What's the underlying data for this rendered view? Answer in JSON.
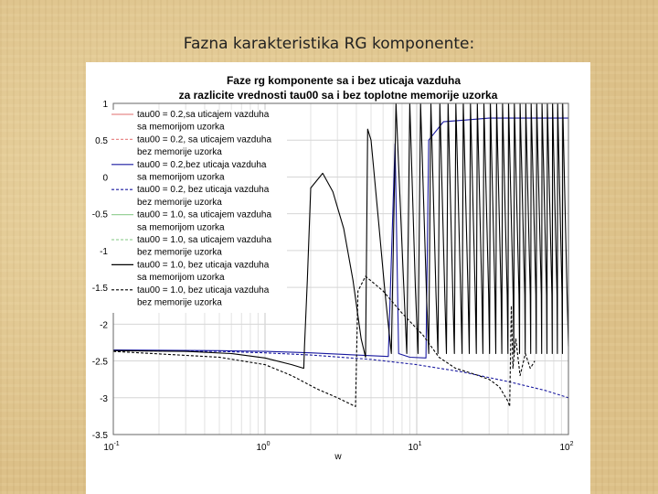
{
  "slide": {
    "title": "Fazna karakteristika RG komponente:"
  },
  "chart_data": {
    "type": "line",
    "title": "Faze rg komponente sa i bez uticaja vazduha",
    "subtitle": "za razlicite vrednosti tau00 sa i bez toplotne memorije uzorka",
    "xlabel": "w",
    "ylabel": "",
    "xscale": "log",
    "xlim": [
      0.1,
      100
    ],
    "ylim": [
      -3.5,
      1
    ],
    "grid": true,
    "legend_position": "top-left",
    "x_ticks": [
      {
        "value": 0.1,
        "base": "10",
        "exp": "-1"
      },
      {
        "value": 1,
        "base": "10",
        "exp": "0"
      },
      {
        "value": 10,
        "base": "10",
        "exp": "1"
      },
      {
        "value": 100,
        "base": "10",
        "exp": "2"
      }
    ],
    "y_ticks": [
      {
        "value": 1,
        "label": "1"
      },
      {
        "value": 0.5,
        "label": "0.5"
      },
      {
        "value": 0,
        "label": "0"
      },
      {
        "value": -0.5,
        "label": "-0.5"
      },
      {
        "value": -1,
        "label": "-1"
      },
      {
        "value": -1.5,
        "label": "-1.5"
      },
      {
        "value": -2,
        "label": "-2"
      },
      {
        "value": -2.5,
        "label": "-2.5"
      },
      {
        "value": -3,
        "label": "-3"
      },
      {
        "value": -3.5,
        "label": "-3.5"
      }
    ],
    "legend": [
      {
        "lines": [
          "tau00 = 0.2,sa uticajem vazduha",
          " sa memorijom uzorka"
        ],
        "color": "#e88a8a",
        "dash": "solid"
      },
      {
        "lines": [
          "tau00 = 0.2, sa uticajem vazduha",
          "bez memorije uzorka"
        ],
        "color": "#e88a8a",
        "dash": "dashed"
      },
      {
        "lines": [
          "tau00 = 0.2,bez uticaja vazduha",
          " sa memorijom uzorka"
        ],
        "color": "#1a1aa0",
        "dash": "solid"
      },
      {
        "lines": [
          "tau00 = 0.2, bez uticaja vazduha",
          "bez memorije uzorka"
        ],
        "color": "#1a1aa0",
        "dash": "dashed"
      },
      {
        "lines": [
          "tau00 = 1.0, sa uticajem vazduha",
          "sa memorijom uzorka"
        ],
        "color": "#9ad29a",
        "dash": "solid"
      },
      {
        "lines": [
          "tau00 = 1.0, sa uticajem vazduha",
          "bez memorije uzorka"
        ],
        "color": "#9ad29a",
        "dash": "dashed"
      },
      {
        "lines": [
          "tau00 = 1.0, bez uticaja vazduha",
          " sa memorijom uzorka"
        ],
        "color": "#000000",
        "dash": "solid"
      },
      {
        "lines": [
          "tau00 = 1.0, bez uticaja vazduha",
          "bez memorije uzorka"
        ],
        "color": "#000000",
        "dash": "dashed"
      }
    ],
    "series": [
      {
        "color": "#1a1aa0",
        "dash": "solid",
        "points": [
          [
            0.1,
            -2.35
          ],
          [
            0.5,
            -2.36
          ],
          [
            1,
            -2.37
          ],
          [
            2,
            -2.39
          ],
          [
            4,
            -2.42
          ],
          [
            6.5,
            -2.44
          ],
          [
            7,
            -0.3
          ],
          [
            7.2,
            0.45
          ],
          [
            7.6,
            -2.4
          ],
          [
            9,
            -2.45
          ],
          [
            11.5,
            -2.46
          ],
          [
            12,
            0.5
          ],
          [
            15,
            0.75
          ],
          [
            30,
            0.8
          ],
          [
            100,
            0.8
          ]
        ]
      },
      {
        "color": "#1a1aa0",
        "dash": "dashed",
        "points": [
          [
            0.1,
            -2.36
          ],
          [
            0.5,
            -2.37
          ],
          [
            1,
            -2.39
          ],
          [
            2,
            -2.42
          ],
          [
            5,
            -2.48
          ],
          [
            10,
            -2.55
          ],
          [
            20,
            -2.65
          ],
          [
            40,
            -2.78
          ],
          [
            70,
            -2.9
          ],
          [
            100,
            -3.0
          ]
        ]
      },
      {
        "color": "#000000",
        "dash": "solid",
        "points": [
          [
            0.1,
            -2.36
          ],
          [
            0.3,
            -2.37
          ],
          [
            0.6,
            -2.4
          ],
          [
            1.0,
            -2.46
          ],
          [
            1.5,
            -2.55
          ],
          [
            1.8,
            -2.6
          ],
          [
            1.82,
            -2.3
          ],
          [
            1.9,
            -1.4
          ],
          [
            2.0,
            -0.15
          ],
          [
            2.4,
            0.05
          ],
          [
            2.8,
            -0.2
          ],
          [
            3.3,
            -0.7
          ],
          [
            3.8,
            -1.4
          ],
          [
            4.3,
            -2.2
          ],
          [
            4.6,
            -2.45
          ],
          [
            4.75,
            0.65
          ],
          [
            5.0,
            0.5
          ],
          [
            5.6,
            -0.6
          ],
          [
            6.2,
            -1.6
          ],
          [
            6.8,
            -2.4
          ],
          [
            7.3,
            1.0
          ],
          [
            8.1,
            -1.2
          ],
          [
            8.6,
            -2.4
          ],
          [
            9.0,
            1.0
          ],
          [
            9.8,
            -1.5
          ],
          [
            10.2,
            -2.4
          ],
          [
            10.6,
            1.0
          ],
          [
            11.6,
            -1.6
          ],
          [
            12.0,
            -2.4
          ],
          [
            12.4,
            1.0
          ],
          [
            13.4,
            -1.6
          ],
          [
            13.8,
            -2.4
          ],
          [
            14.2,
            1.0
          ],
          [
            15.3,
            -1.6
          ],
          [
            15.7,
            -2.4
          ],
          [
            16.1,
            1.0
          ],
          [
            17.3,
            -1.6
          ],
          [
            17.7,
            -2.4
          ],
          [
            18.1,
            1.0
          ],
          [
            19.5,
            -1.6
          ],
          [
            19.9,
            -2.4
          ],
          [
            20.3,
            1.0
          ],
          [
            21.8,
            -1.6
          ],
          [
            22.2,
            -2.4
          ],
          [
            22.6,
            1.0
          ],
          [
            24.3,
            -1.6
          ],
          [
            24.7,
            -2.4
          ],
          [
            25.1,
            1.0
          ],
          [
            26.9,
            -1.6
          ],
          [
            27.3,
            -2.4
          ],
          [
            27.7,
            1.0
          ],
          [
            29.8,
            -1.6
          ],
          [
            30.2,
            -2.4
          ],
          [
            30.6,
            1.0
          ],
          [
            32.8,
            -1.6
          ],
          [
            33.2,
            -2.4
          ],
          [
            33.6,
            1.0
          ],
          [
            36.0,
            -1.6
          ],
          [
            36.4,
            -2.4
          ],
          [
            36.8,
            1.0
          ],
          [
            39.5,
            -1.6
          ],
          [
            39.9,
            -2.4
          ],
          [
            40.3,
            1.0
          ],
          [
            43.2,
            -1.6
          ],
          [
            43.6,
            -2.4
          ],
          [
            44.0,
            1.0
          ],
          [
            47.2,
            -1.6
          ],
          [
            47.6,
            -2.4
          ],
          [
            48.0,
            1.0
          ],
          [
            51.5,
            -1.6
          ],
          [
            51.9,
            -2.4
          ],
          [
            52.3,
            1.0
          ],
          [
            56.0,
            -1.6
          ],
          [
            56.4,
            -2.4
          ],
          [
            56.8,
            1.0
          ],
          [
            61.0,
            -1.6
          ],
          [
            61.4,
            -2.4
          ],
          [
            61.8,
            1.0
          ],
          [
            66.2,
            -1.6
          ],
          [
            66.6,
            -2.4
          ],
          [
            67.0,
            1.0
          ],
          [
            71.8,
            -1.6
          ],
          [
            72.2,
            -2.4
          ],
          [
            72.6,
            1.0
          ],
          [
            77.8,
            -1.6
          ],
          [
            78.2,
            -2.4
          ],
          [
            78.6,
            1.0
          ],
          [
            84.1,
            -1.6
          ],
          [
            84.5,
            -2.4
          ],
          [
            84.9,
            1.0
          ],
          [
            90.8,
            -1.6
          ],
          [
            91.2,
            -2.4
          ],
          [
            91.6,
            1.0
          ],
          [
            98,
            -1.6
          ],
          [
            100,
            -2.3
          ]
        ]
      },
      {
        "color": "#000000",
        "dash": "dashed",
        "points": [
          [
            0.1,
            -2.37
          ],
          [
            0.5,
            -2.45
          ],
          [
            1,
            -2.55
          ],
          [
            1.5,
            -2.7
          ],
          [
            2.2,
            -2.88
          ],
          [
            3,
            -3.0
          ],
          [
            3.95,
            -3.12
          ],
          [
            4.0,
            -2.6
          ],
          [
            4.1,
            -1.55
          ],
          [
            4.6,
            -1.35
          ],
          [
            6,
            -1.55
          ],
          [
            8,
            -1.85
          ],
          [
            11,
            -2.15
          ],
          [
            14,
            -2.45
          ],
          [
            18,
            -2.6
          ],
          [
            24,
            -2.68
          ],
          [
            30,
            -2.75
          ],
          [
            35,
            -2.85
          ],
          [
            40,
            -3.05
          ],
          [
            41,
            -3.12
          ],
          [
            42,
            -1.75
          ],
          [
            43,
            -2.6
          ],
          [
            45,
            -2.2
          ],
          [
            48,
            -2.7
          ],
          [
            52,
            -2.4
          ],
          [
            56,
            -2.6
          ],
          [
            60,
            -2.5
          ]
        ]
      }
    ]
  }
}
